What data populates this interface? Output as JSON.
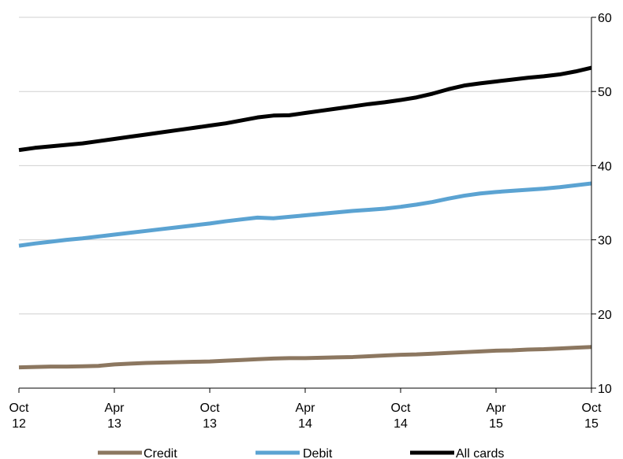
{
  "chart_data": {
    "type": "line",
    "x_ticks": [
      {
        "index": 0,
        "line1": "Oct",
        "line2": "12"
      },
      {
        "index": 6,
        "line1": "Apr",
        "line2": "13"
      },
      {
        "index": 12,
        "line1": "Oct",
        "line2": "13"
      },
      {
        "index": 18,
        "line1": "Apr",
        "line2": "14"
      },
      {
        "index": 24,
        "line1": "Oct",
        "line2": "14"
      },
      {
        "index": 30,
        "line1": "Apr",
        "line2": "15"
      },
      {
        "index": 36,
        "line1": "Oct",
        "line2": "15"
      }
    ],
    "x_count": 37,
    "y_axis": {
      "min": 10,
      "max": 60,
      "ticks": [
        10,
        20,
        30,
        40,
        50,
        60
      ],
      "position": "right"
    },
    "grid": true,
    "legend": "bottom",
    "series": [
      {
        "name": "Credit",
        "color": "#8c7760",
        "values": [
          12.8,
          12.85,
          12.9,
          12.9,
          12.95,
          13.0,
          13.2,
          13.3,
          13.4,
          13.45,
          13.5,
          13.55,
          13.6,
          13.7,
          13.8,
          13.9,
          14.0,
          14.05,
          14.05,
          14.1,
          14.15,
          14.2,
          14.3,
          14.4,
          14.5,
          14.55,
          14.65,
          14.75,
          14.85,
          14.95,
          15.05,
          15.1,
          15.2,
          15.25,
          15.35,
          15.45,
          15.55
        ]
      },
      {
        "name": "Debit",
        "color": "#5ba3d2",
        "values": [
          29.2,
          29.5,
          29.75,
          30.0,
          30.2,
          30.45,
          30.7,
          30.95,
          31.2,
          31.45,
          31.7,
          31.95,
          32.2,
          32.5,
          32.75,
          33.0,
          32.9,
          33.1,
          33.3,
          33.5,
          33.7,
          33.9,
          34.05,
          34.2,
          34.45,
          34.75,
          35.1,
          35.55,
          35.95,
          36.25,
          36.45,
          36.6,
          36.75,
          36.9,
          37.1,
          37.35,
          37.6
        ]
      },
      {
        "name": "All cards",
        "color": "#000000",
        "values": [
          42.1,
          42.4,
          42.6,
          42.8,
          43.0,
          43.3,
          43.6,
          43.9,
          44.2,
          44.5,
          44.8,
          45.1,
          45.4,
          45.7,
          46.1,
          46.5,
          46.75,
          46.8,
          47.1,
          47.4,
          47.7,
          48.0,
          48.3,
          48.55,
          48.85,
          49.2,
          49.7,
          50.3,
          50.8,
          51.1,
          51.35,
          51.6,
          51.85,
          52.05,
          52.3,
          52.7,
          53.2
        ]
      }
    ]
  }
}
